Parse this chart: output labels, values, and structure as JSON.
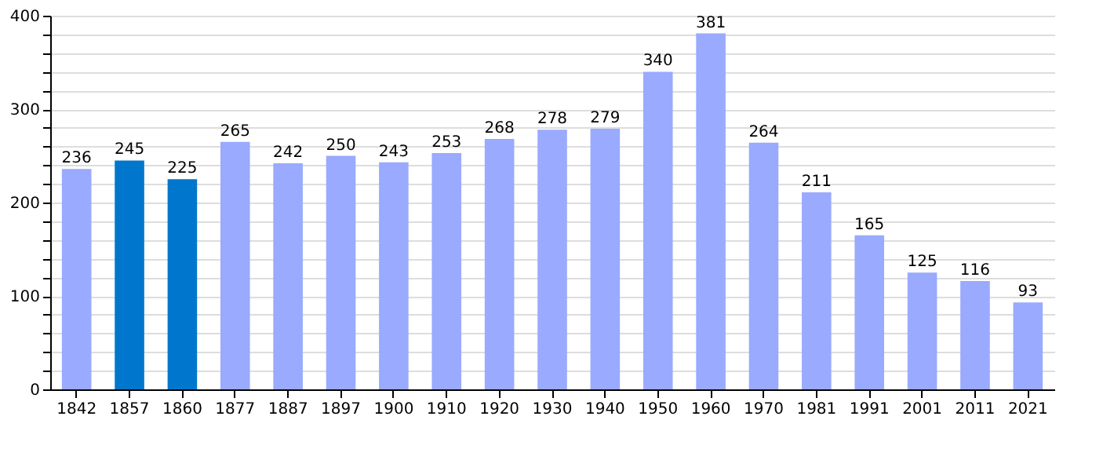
{
  "chart_data": {
    "type": "bar",
    "categories": [
      "1842",
      "1857",
      "1860",
      "1877",
      "1887",
      "1897",
      "1900",
      "1910",
      "1920",
      "1930",
      "1940",
      "1950",
      "1960",
      "1970",
      "1981",
      "1991",
      "2001",
      "2011",
      "2021"
    ],
    "values": [
      236,
      245,
      225,
      265,
      242,
      250,
      243,
      253,
      268,
      278,
      279,
      340,
      381,
      264,
      211,
      165,
      125,
      116,
      93
    ],
    "colors": [
      "#99aaff",
      "#0077cc",
      "#0077cc",
      "#99aaff",
      "#99aaff",
      "#99aaff",
      "#99aaff",
      "#99aaff",
      "#99aaff",
      "#99aaff",
      "#99aaff",
      "#99aaff",
      "#99aaff",
      "#99aaff",
      "#99aaff",
      "#99aaff",
      "#99aaff",
      "#99aaff",
      "#99aaff"
    ],
    "ylim": [
      0,
      400
    ],
    "yticks": [
      0,
      {
        "value": 20,
        "label": null
      },
      {
        "value": 40,
        "label": null
      },
      {
        "value": 60,
        "label": null
      },
      {
        "value": 80,
        "label": null
      },
      100,
      {
        "value": 120,
        "label": null
      },
      {
        "value": 140,
        "label": null
      },
      {
        "value": 160,
        "label": null
      },
      {
        "value": 180,
        "label": null
      },
      200,
      {
        "value": 220,
        "label": null
      },
      {
        "value": 240,
        "label": null
      },
      {
        "value": 260,
        "label": null
      },
      {
        "value": 280,
        "label": null
      },
      300,
      {
        "value": 320,
        "label": null
      },
      {
        "value": 340,
        "label": null
      },
      {
        "value": 360,
        "label": null
      },
      {
        "value": 380,
        "label": null
      },
      400
    ],
    "grid": true,
    "data_labels": true
  }
}
